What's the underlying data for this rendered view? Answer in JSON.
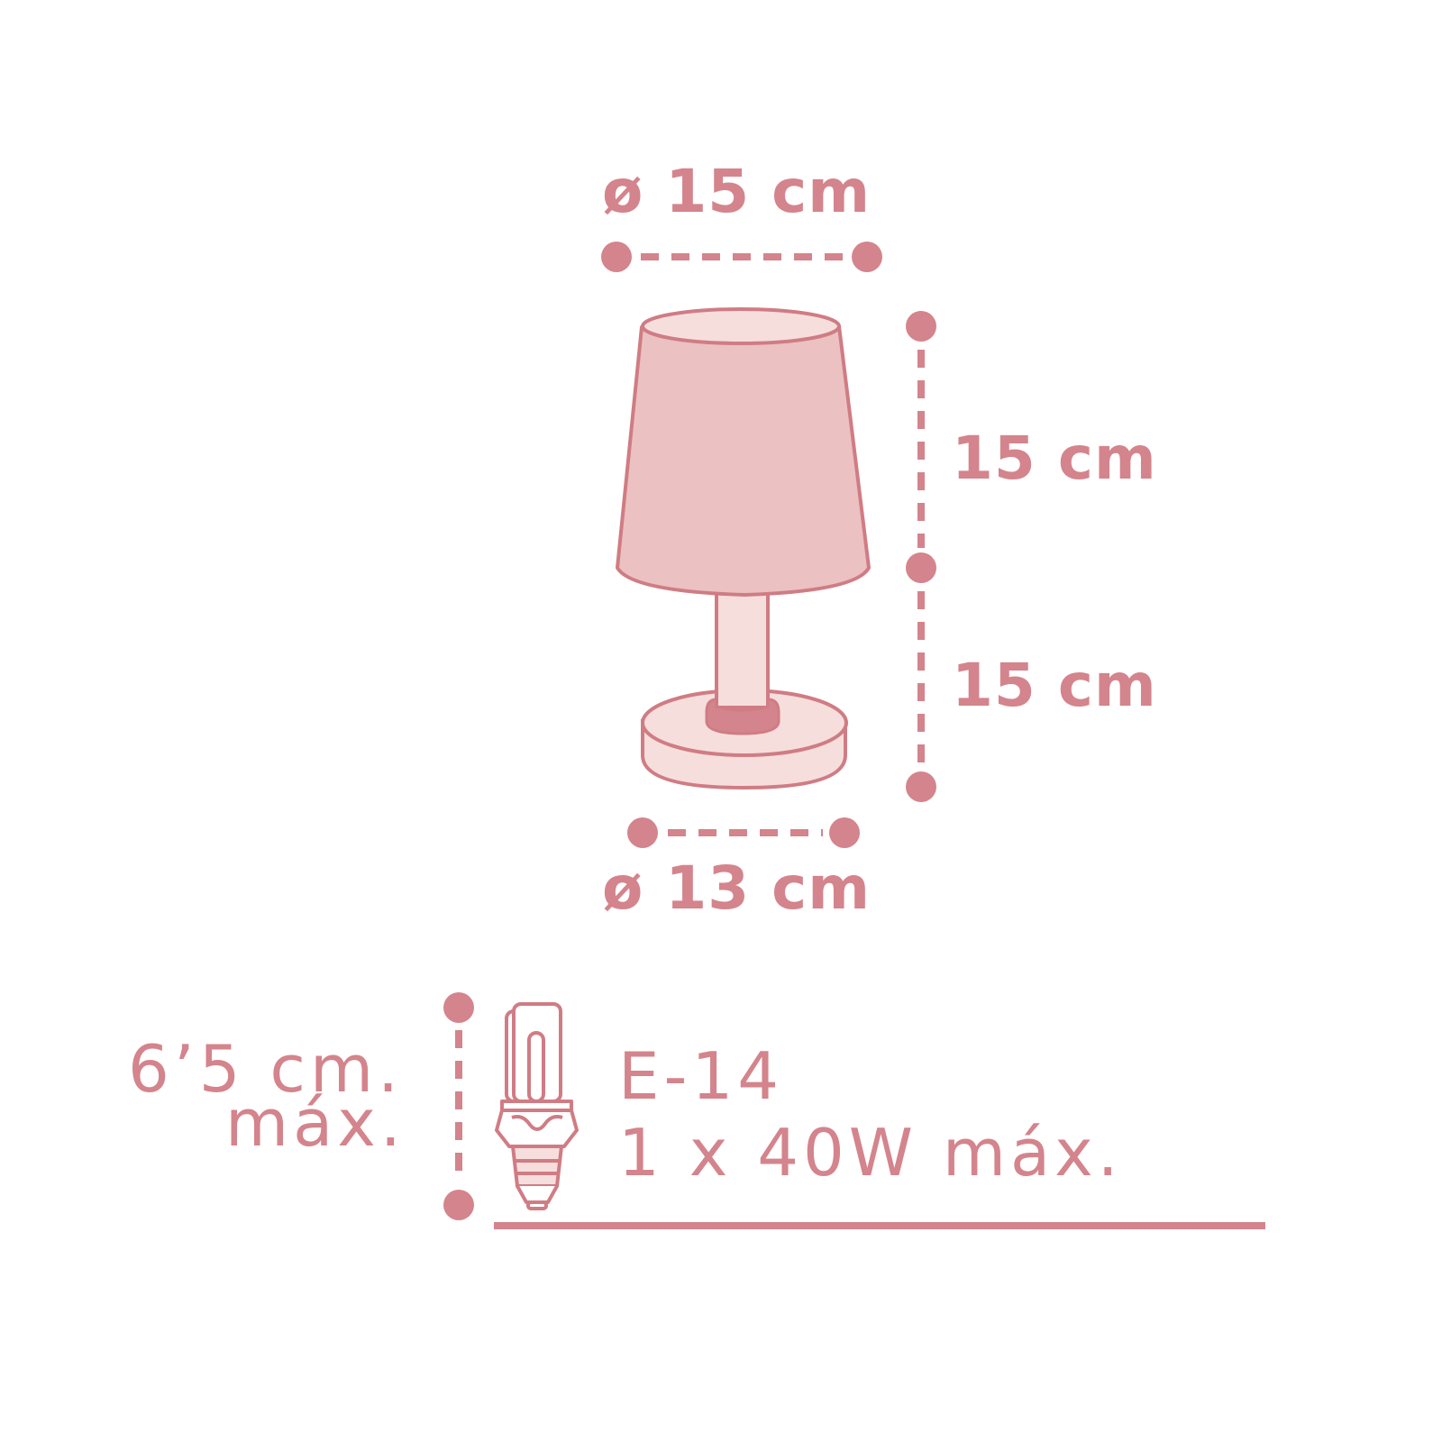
{
  "colors": {
    "accent": "#d4848c",
    "stroke": "#d07c84",
    "shade_fill": "#ebc1c2",
    "light_fill": "#f6dedd",
    "background": "#ffffff"
  },
  "dimensions": {
    "shade_diameter": "ø 15 cm",
    "shade_height": "15 cm",
    "base_height": "15 cm",
    "base_diameter": "ø 13 cm"
  },
  "bulb": {
    "max_length_line1": "6’5 cm.",
    "max_length_line2": "máx.",
    "socket": "E-14",
    "power": "1 x 40W máx.",
    "icon": "cfl-bulb-icon"
  }
}
